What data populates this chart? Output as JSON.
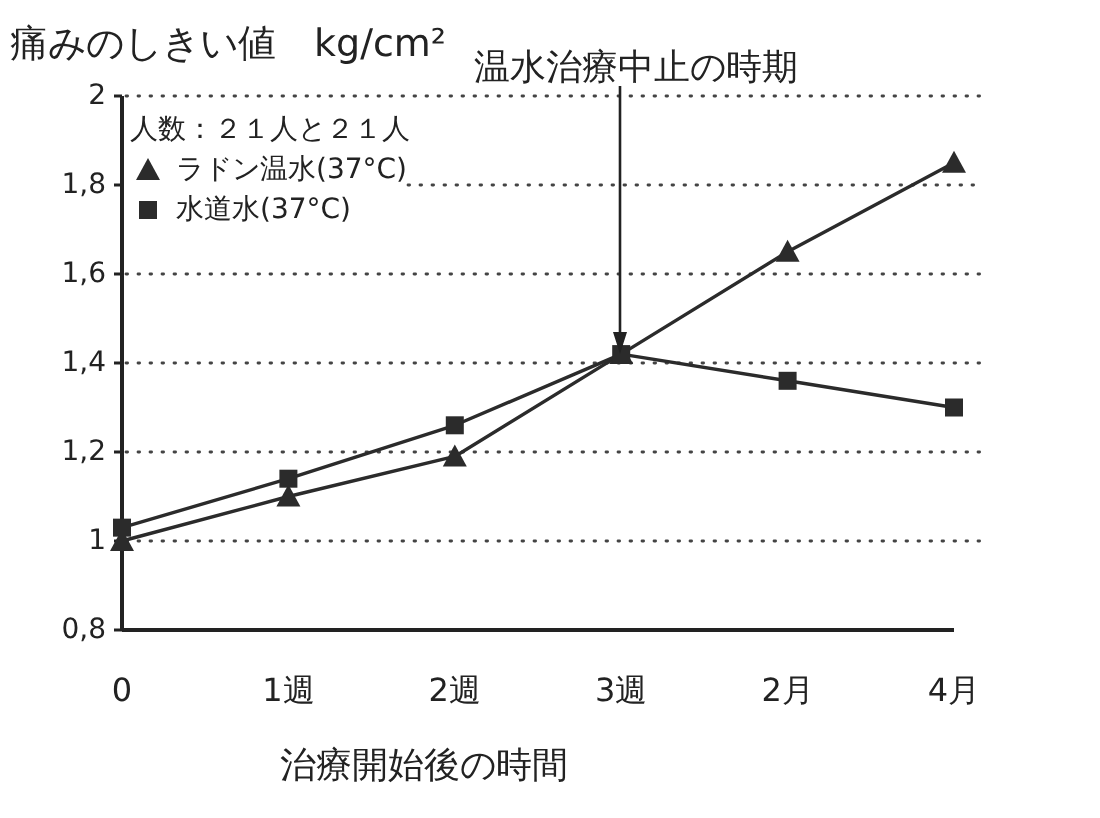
{
  "chart_data": {
    "type": "line",
    "ylabel": "痛みのしきい値　kg/cm²",
    "xlabel": "治療開始後の時間",
    "legend_title": "人数：２１人と２１人",
    "legend": "top left",
    "grid": "y",
    "categories": [
      "0",
      "1週",
      "2週",
      "3週",
      "2月",
      "4月"
    ],
    "series": [
      {
        "name": "ラドン温水(37°C)",
        "color": "#2b2b2b",
        "marker": "triangle",
        "values": [
          1.0,
          1.1,
          1.19,
          1.42,
          1.65,
          1.85
        ]
      },
      {
        "name": "水道水(37°C)",
        "color": "#2b2b2b",
        "marker": "square",
        "values": [
          1.03,
          1.14,
          1.26,
          1.42,
          1.36,
          1.3
        ]
      }
    ],
    "ylim": [
      0.8,
      2
    ],
    "yticks": [
      {
        "value": 0.8,
        "label": "0,8"
      },
      1,
      {
        "value": 1.2,
        "label": "1,2"
      },
      {
        "value": 1.4,
        "label": "1,4"
      },
      {
        "value": 1.6,
        "label": "1,6"
      },
      {
        "value": 1.8,
        "label": "1,8"
      },
      2
    ],
    "annotations": [
      "温水治療中止の時期"
    ]
  }
}
